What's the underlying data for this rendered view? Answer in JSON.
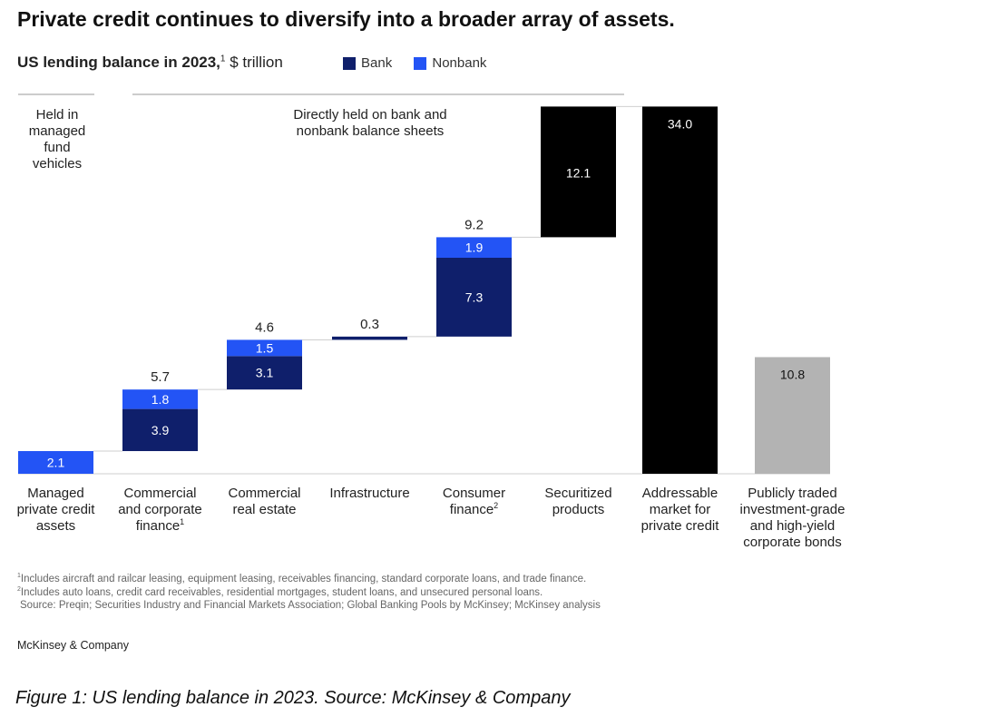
{
  "title": "Private credit continues to diversify into a broader array of assets.",
  "subtitle": {
    "bold": "US lending balance in 2023,",
    "sup": "1",
    "unit": " $ trillion"
  },
  "section_labels": {
    "managed": [
      "Held in",
      "managed",
      "fund",
      "vehicles"
    ],
    "direct": [
      "Directly held on bank and",
      "nonbank balance sheets"
    ]
  },
  "colors": {
    "bank": "#0f1f6b",
    "nonbank": "#2354f5",
    "total": "#000000",
    "public": "#b3b3b3"
  },
  "chart_data": {
    "type": "bar",
    "subtype": "waterfall",
    "unit": "$ trillion",
    "legend": [
      {
        "name": "Bank",
        "color": "#0f1f6b"
      },
      {
        "name": "Nonbank",
        "color": "#2354f5"
      }
    ],
    "categories": [
      {
        "label": [
          "Managed",
          "private credit",
          "assets"
        ],
        "sup": ""
      },
      {
        "label": [
          "Commercial",
          "and corporate",
          "finance"
        ],
        "sup": "1"
      },
      {
        "label": [
          "Commercial",
          "real estate"
        ],
        "sup": ""
      },
      {
        "label": [
          "Infrastructure"
        ],
        "sup": ""
      },
      {
        "label": [
          "Consumer",
          "finance"
        ],
        "sup": "2"
      },
      {
        "label": [
          "Securitized",
          "products"
        ],
        "sup": ""
      },
      {
        "label": [
          "Addressable",
          "market for",
          "private credit"
        ],
        "sup": ""
      },
      {
        "label": [
          "Publicly traded",
          "investment-grade",
          "and high-yield",
          "corporate bonds"
        ],
        "sup": ""
      }
    ],
    "bars": [
      {
        "kind": "step",
        "total_label": "",
        "segments": [
          {
            "series": "Nonbank",
            "value": 2.1,
            "label": "2.1"
          }
        ]
      },
      {
        "kind": "step",
        "total_label": "5.7",
        "segments": [
          {
            "series": "Bank",
            "value": 3.9,
            "label": "3.9"
          },
          {
            "series": "Nonbank",
            "value": 1.8,
            "label": "1.8"
          }
        ]
      },
      {
        "kind": "step",
        "total_label": "4.6",
        "segments": [
          {
            "series": "Bank",
            "value": 3.1,
            "label": "3.1"
          },
          {
            "series": "Nonbank",
            "value": 1.5,
            "label": "1.5"
          }
        ]
      },
      {
        "kind": "step",
        "total_label": "0.3",
        "segments": [
          {
            "series": "Bank",
            "value": 0.3,
            "label": ""
          }
        ]
      },
      {
        "kind": "step",
        "total_label": "9.2",
        "segments": [
          {
            "series": "Bank",
            "value": 7.3,
            "label": "7.3"
          },
          {
            "series": "Nonbank",
            "value": 1.9,
            "label": "1.9"
          }
        ]
      },
      {
        "kind": "step",
        "total_label": "",
        "segments": [
          {
            "series": "Total",
            "value": 12.1,
            "label": "12.1"
          }
        ]
      },
      {
        "kind": "total",
        "total_label": "",
        "segments": [
          {
            "series": "Total",
            "value": 34.0,
            "label": "34.0"
          }
        ]
      },
      {
        "kind": "standalone",
        "total_label": "",
        "segments": [
          {
            "series": "Public",
            "value": 10.8,
            "label": "10.8"
          }
        ]
      }
    ]
  },
  "footnotes": [
    {
      "sup": "1",
      "text": "Includes aircraft and railcar leasing, equipment leasing, receivables financing, standard corporate loans, and trade finance."
    },
    {
      "sup": "2",
      "text": "Includes auto loans, credit card receivables, residential mortgages, student loans, and unsecured personal loans."
    },
    {
      "sup": "",
      "text": "Source: Preqin; Securities Industry and Financial Markets Association; Global Banking Pools by McKinsey; McKinsey analysis"
    }
  ],
  "brand": "McKinsey & Company",
  "caption": "Figure 1: US lending balance in 2023. Source: McKinsey & Company"
}
